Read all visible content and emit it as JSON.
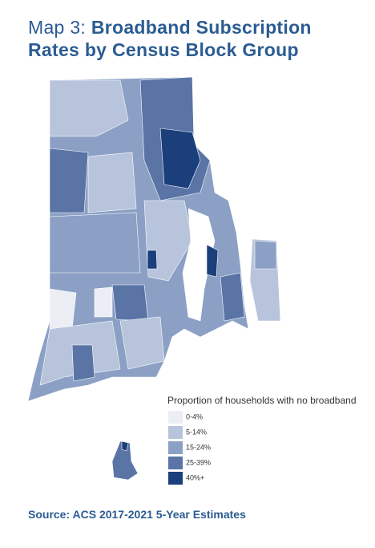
{
  "title": {
    "prefix": "Map 3:",
    "main": "Broadband Subscription Rates by Census Block Group"
  },
  "legend": {
    "title": "Proportion of households with no broadband",
    "items": [
      {
        "label": "0-4%",
        "color": "#eceef5"
      },
      {
        "label": "5-14%",
        "color": "#b8c4dc"
      },
      {
        "label": "15-24%",
        "color": "#8ba0c4"
      },
      {
        "label": "25-39%",
        "color": "#5a74a6"
      },
      {
        "label": "40%+",
        "color": "#1b3f7a"
      }
    ]
  },
  "source": "Source: ACS 2017-2021 5-Year Estimates"
}
